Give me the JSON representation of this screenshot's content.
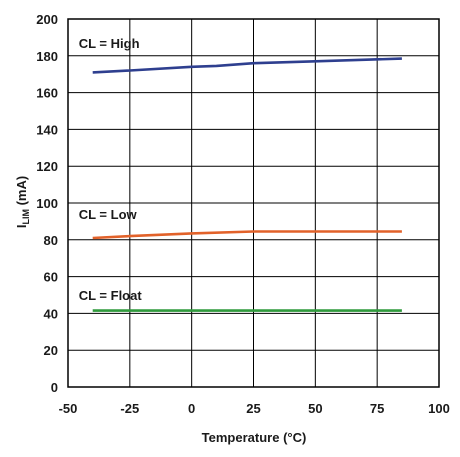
{
  "chart_data": {
    "type": "line",
    "title": "",
    "xlabel": "Temperature (°C)",
    "ylabel_main": "I",
    "ylabel_sub": "LIM",
    "ylabel_unit": " (mA)",
    "xlim": [
      -50,
      100
    ],
    "ylim": [
      0,
      200
    ],
    "xticks": [
      -50,
      -25,
      0,
      25,
      50,
      75,
      100
    ],
    "yticks": [
      0,
      20,
      40,
      60,
      80,
      100,
      120,
      140,
      160,
      180,
      200
    ],
    "xtick_labels": [
      "-50",
      "-25",
      "0",
      "25",
      "50",
      "75",
      "100"
    ],
    "ytick_labels": [
      "0",
      "20",
      "40",
      "60",
      "80",
      "100",
      "120",
      "140",
      "160",
      "180",
      "200"
    ],
    "grid": true,
    "legend": "none",
    "series": [
      {
        "label": "CL = High",
        "color": "#2e3f8f",
        "label_pos": {
          "x": -40,
          "y": 187
        },
        "x": [
          -40,
          -25,
          0,
          10,
          25,
          50,
          85
        ],
        "y": [
          171,
          172,
          174,
          174.5,
          176,
          177,
          178.5
        ]
      },
      {
        "label": "CL = Low",
        "color": "#e2622a",
        "label_pos": {
          "x": -40,
          "y": 94
        },
        "x": [
          -40,
          -25,
          0,
          25,
          50,
          85
        ],
        "y": [
          81,
          82,
          83.5,
          84.5,
          84.5,
          84.5
        ]
      },
      {
        "label": "CL = Float",
        "color": "#2f9a3c",
        "label_pos": {
          "x": -40,
          "y": 50
        },
        "x": [
          -40,
          -25,
          0,
          25,
          50,
          85
        ],
        "y": [
          41.5,
          41.5,
          41.5,
          41.5,
          41.5,
          41.5
        ]
      }
    ]
  }
}
